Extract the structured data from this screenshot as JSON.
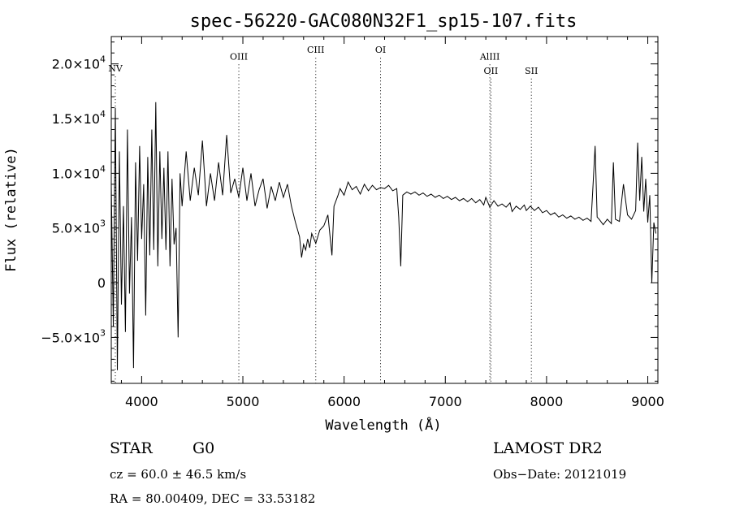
{
  "chart_data": {
    "type": "line",
    "title": "spec-56220-GAC080N32F1_sp15-107.fits",
    "xlabel": "Wavelength (Å)",
    "ylabel": "Flux (relative)",
    "xlim": [
      3700,
      9100
    ],
    "ylim": [
      -9200,
      22500
    ],
    "x_ticks": [
      {
        "value": 4000,
        "label": "4000"
      },
      {
        "value": 5000,
        "label": "5000"
      },
      {
        "value": 6000,
        "label": "6000"
      },
      {
        "value": 7000,
        "label": "7000"
      },
      {
        "value": 8000,
        "label": "8000"
      },
      {
        "value": 9000,
        "label": "9000"
      }
    ],
    "y_ticks": [
      {
        "value": 20000,
        "mantissa": "2.0×10",
        "exp": "4"
      },
      {
        "value": 15000,
        "mantissa": "1.5×10",
        "exp": "4"
      },
      {
        "value": 10000,
        "mantissa": "1.0×10",
        "exp": "4"
      },
      {
        "value": 5000,
        "mantissa": "5.0×10",
        "exp": "3"
      },
      {
        "value": 0,
        "mantissa": "0",
        "exp": ""
      },
      {
        "value": -5000,
        "mantissa": "−5.0×10",
        "exp": "3"
      }
    ],
    "lines": [
      {
        "label": "NV",
        "x": 3740,
        "label_y": 19300
      },
      {
        "label": "OIII",
        "x": 4960,
        "label_y": 20400
      },
      {
        "label": "CIII",
        "x": 5720,
        "label_y": 21000
      },
      {
        "label": "OI",
        "x": 6360,
        "label_y": 21000
      },
      {
        "label": "AlIII",
        "x": 7440,
        "label_y": 20400
      },
      {
        "label": "OII",
        "x": 7450,
        "label_y": 19100
      },
      {
        "label": "SII",
        "x": 7850,
        "label_y": 19100
      }
    ],
    "spectrum": [
      [
        3700,
        9000
      ],
      [
        3720,
        -4000
      ],
      [
        3740,
        16000
      ],
      [
        3760,
        -8000
      ],
      [
        3780,
        12000
      ],
      [
        3800,
        -2000
      ],
      [
        3820,
        7000
      ],
      [
        3840,
        -4500
      ],
      [
        3860,
        14000
      ],
      [
        3880,
        -1000
      ],
      [
        3900,
        6000
      ],
      [
        3920,
        -7800
      ],
      [
        3940,
        11000
      ],
      [
        3960,
        2000
      ],
      [
        3980,
        12500
      ],
      [
        4000,
        4000
      ],
      [
        4020,
        9000
      ],
      [
        4040,
        -3000
      ],
      [
        4060,
        11500
      ],
      [
        4080,
        2500
      ],
      [
        4100,
        14000
      ],
      [
        4120,
        3000
      ],
      [
        4140,
        16500
      ],
      [
        4160,
        1500
      ],
      [
        4180,
        12000
      ],
      [
        4200,
        4000
      ],
      [
        4220,
        10500
      ],
      [
        4240,
        3000
      ],
      [
        4260,
        12000
      ],
      [
        4280,
        1500
      ],
      [
        4300,
        9500
      ],
      [
        4320,
        3500
      ],
      [
        4340,
        5000
      ],
      [
        4360,
        -5000
      ],
      [
        4380,
        10000
      ],
      [
        4400,
        7000
      ],
      [
        4440,
        12000
      ],
      [
        4480,
        7500
      ],
      [
        4520,
        10500
      ],
      [
        4560,
        8000
      ],
      [
        4600,
        13000
      ],
      [
        4640,
        7000
      ],
      [
        4680,
        10000
      ],
      [
        4720,
        7500
      ],
      [
        4760,
        11000
      ],
      [
        4800,
        8000
      ],
      [
        4840,
        13500
      ],
      [
        4880,
        8200
      ],
      [
        4920,
        9500
      ],
      [
        4960,
        7800
      ],
      [
        5000,
        10500
      ],
      [
        5040,
        7500
      ],
      [
        5080,
        10000
      ],
      [
        5120,
        7000
      ],
      [
        5160,
        8500
      ],
      [
        5200,
        9500
      ],
      [
        5240,
        6800
      ],
      [
        5280,
        8800
      ],
      [
        5320,
        7500
      ],
      [
        5360,
        9200
      ],
      [
        5400,
        7800
      ],
      [
        5440,
        9000
      ],
      [
        5480,
        7000
      ],
      [
        5520,
        5500
      ],
      [
        5560,
        4200
      ],
      [
        5580,
        2300
      ],
      [
        5600,
        3500
      ],
      [
        5620,
        3000
      ],
      [
        5640,
        4000
      ],
      [
        5660,
        3200
      ],
      [
        5680,
        4500
      ],
      [
        5720,
        3600
      ],
      [
        5760,
        4800
      ],
      [
        5800,
        5200
      ],
      [
        5840,
        6200
      ],
      [
        5880,
        2500
      ],
      [
        5900,
        7000
      ],
      [
        5940,
        8000
      ],
      [
        5960,
        8600
      ],
      [
        6000,
        8000
      ],
      [
        6040,
        9200
      ],
      [
        6080,
        8500
      ],
      [
        6120,
        8800
      ],
      [
        6160,
        8100
      ],
      [
        6200,
        9000
      ],
      [
        6240,
        8400
      ],
      [
        6280,
        8900
      ],
      [
        6320,
        8500
      ],
      [
        6360,
        8700
      ],
      [
        6400,
        8600
      ],
      [
        6440,
        8900
      ],
      [
        6480,
        8400
      ],
      [
        6520,
        8600
      ],
      [
        6540,
        6000
      ],
      [
        6560,
        1500
      ],
      [
        6580,
        8000
      ],
      [
        6620,
        8300
      ],
      [
        6660,
        8100
      ],
      [
        6700,
        8300
      ],
      [
        6740,
        8000
      ],
      [
        6780,
        8200
      ],
      [
        6820,
        7900
      ],
      [
        6860,
        8100
      ],
      [
        6900,
        7800
      ],
      [
        6940,
        8000
      ],
      [
        6980,
        7700
      ],
      [
        7020,
        7900
      ],
      [
        7060,
        7600
      ],
      [
        7100,
        7800
      ],
      [
        7140,
        7500
      ],
      [
        7180,
        7700
      ],
      [
        7220,
        7400
      ],
      [
        7260,
        7700
      ],
      [
        7300,
        7300
      ],
      [
        7340,
        7600
      ],
      [
        7380,
        7100
      ],
      [
        7400,
        7800
      ],
      [
        7440,
        6900
      ],
      [
        7480,
        7500
      ],
      [
        7520,
        7000
      ],
      [
        7560,
        7200
      ],
      [
        7600,
        6900
      ],
      [
        7640,
        7300
      ],
      [
        7660,
        6500
      ],
      [
        7700,
        7000
      ],
      [
        7740,
        6700
      ],
      [
        7780,
        7100
      ],
      [
        7800,
        6600
      ],
      [
        7840,
        7000
      ],
      [
        7880,
        6600
      ],
      [
        7920,
        6900
      ],
      [
        7960,
        6400
      ],
      [
        8000,
        6600
      ],
      [
        8040,
        6200
      ],
      [
        8080,
        6400
      ],
      [
        8120,
        6000
      ],
      [
        8160,
        6200
      ],
      [
        8200,
        5900
      ],
      [
        8240,
        6100
      ],
      [
        8280,
        5800
      ],
      [
        8320,
        6000
      ],
      [
        8360,
        5700
      ],
      [
        8400,
        5900
      ],
      [
        8440,
        5600
      ],
      [
        8460,
        9000
      ],
      [
        8480,
        12500
      ],
      [
        8500,
        6000
      ],
      [
        8520,
        5800
      ],
      [
        8560,
        5300
      ],
      [
        8600,
        5800
      ],
      [
        8640,
        5400
      ],
      [
        8660,
        11000
      ],
      [
        8680,
        5800
      ],
      [
        8720,
        5600
      ],
      [
        8760,
        9000
      ],
      [
        8800,
        6200
      ],
      [
        8840,
        5800
      ],
      [
        8880,
        6600
      ],
      [
        8900,
        12800
      ],
      [
        8920,
        7500
      ],
      [
        8940,
        11500
      ],
      [
        8960,
        6500
      ],
      [
        8980,
        9500
      ],
      [
        9000,
        5500
      ],
      [
        9020,
        8000
      ],
      [
        9040,
        0
      ],
      [
        9060,
        5500
      ],
      [
        9080,
        4500
      ]
    ]
  },
  "info": {
    "object_type": "STAR",
    "subclass": "G0",
    "survey": "LAMOST DR2",
    "redshift": "cz = 60.0 ± 46.5 km/s",
    "obs_date": "Obs−Date: 20121019",
    "coords": "RA =  80.00409, DEC =  33.53182"
  },
  "colors": {
    "axis": "#000000",
    "spectrum": "#000000",
    "background": "#ffffff"
  }
}
